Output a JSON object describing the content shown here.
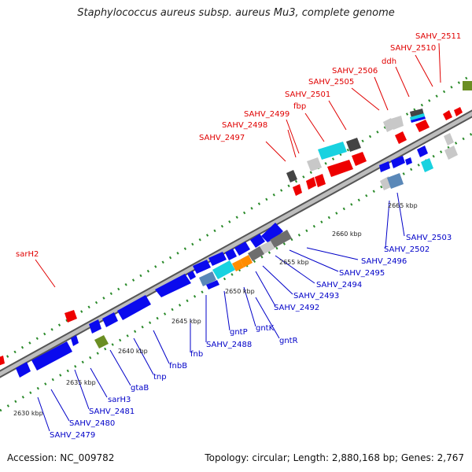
{
  "title": "Staphylococcus aureus subsp. aureus Mu3, complete genome",
  "footer": {
    "accession": "Accession: NC_009782",
    "summary": "Topology: circular; Length: 2,880,168 bp; Genes: 2,767"
  },
  "colors": {
    "backbone": "#8a8a8a",
    "upper_label": "#e00000",
    "lower_label": "#0000c8",
    "gene_red": "#ee0000",
    "gene_blue": "#0a0aee",
    "gene_cyan": "#18d2e0",
    "gene_orange": "#ff8c00",
    "gene_gray_dark": "#6e6e6e",
    "gene_gray_light": "#c8c8c8",
    "gene_olive": "#6b8e23",
    "gene_steel": "#5a88b8",
    "tick": "#2a8a2a"
  },
  "upper_labels": [
    {
      "text": "SAHV_2511"
    },
    {
      "text": "SAHV_2510"
    },
    {
      "text": "ddh"
    },
    {
      "text": "SAHV_2506"
    },
    {
      "text": "SAHV_2505"
    },
    {
      "text": "SAHV_2501"
    },
    {
      "text": "fbp"
    },
    {
      "text": "SAHV_2499"
    },
    {
      "text": "SAHV_2498"
    },
    {
      "text": "SAHV_2497"
    },
    {
      "text": "sarH2"
    }
  ],
  "lower_labels": [
    {
      "text": "SAHV_2503"
    },
    {
      "text": "SAHV_2502"
    },
    {
      "text": "SAHV_2496"
    },
    {
      "text": "SAHV_2495"
    },
    {
      "text": "SAHV_2494"
    },
    {
      "text": "SAHV_2493"
    },
    {
      "text": "SAHV_2492"
    },
    {
      "text": "gntR"
    },
    {
      "text": "gntK"
    },
    {
      "text": "gntP"
    },
    {
      "text": "SAHV_2488"
    },
    {
      "text": "fnb"
    },
    {
      "text": "fnbB"
    },
    {
      "text": "tnp"
    },
    {
      "text": "gtaB"
    },
    {
      "text": "sarH3"
    },
    {
      "text": "SAHV_2481"
    },
    {
      "text": "SAHV_2480"
    },
    {
      "text": "SAHV_2479"
    }
  ],
  "kbp_ticks": [
    {
      "text": "2665 kbp"
    },
    {
      "text": "2660 kbp"
    },
    {
      "text": "2655 kbp"
    },
    {
      "text": "2650 kbp"
    },
    {
      "text": "2645 kbp"
    },
    {
      "text": "2640 kbp"
    },
    {
      "text": "2635 kbp"
    },
    {
      "text": "2630 kbp"
    }
  ]
}
